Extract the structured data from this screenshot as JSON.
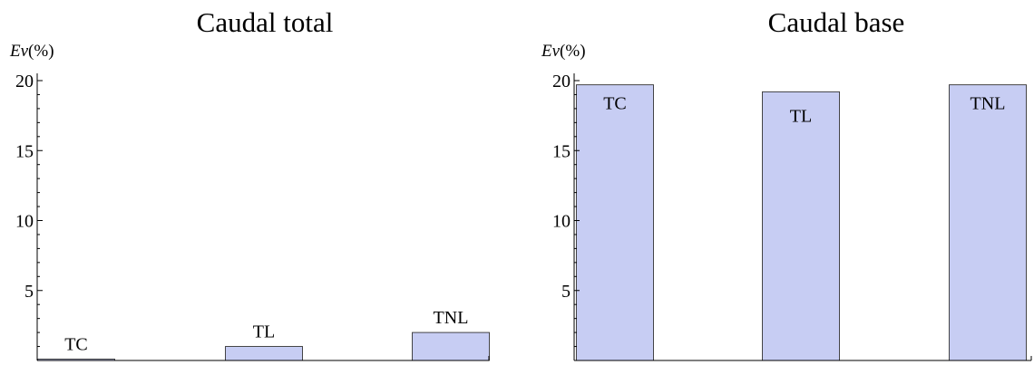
{
  "chart_data": [
    {
      "type": "bar",
      "title": "Caudal total",
      "ylabel_italic": "Ev",
      "ylabel_rest": "(%)",
      "ylim": [
        0,
        20
      ],
      "yticks": [
        5,
        10,
        15,
        20
      ],
      "categories": [
        "TC",
        "TL",
        "TNL"
      ],
      "values": [
        0.1,
        1.0,
        2.0
      ],
      "grid": false
    },
    {
      "type": "bar",
      "title": "Caudal base",
      "ylabel_italic": "Ev",
      "ylabel_rest": "(%)",
      "ylim": [
        0,
        20
      ],
      "yticks": [
        5,
        10,
        15,
        20
      ],
      "categories": [
        "TC",
        "TL",
        "TNL"
      ],
      "values": [
        19.7,
        19.2,
        19.7
      ],
      "grid": false
    }
  ]
}
